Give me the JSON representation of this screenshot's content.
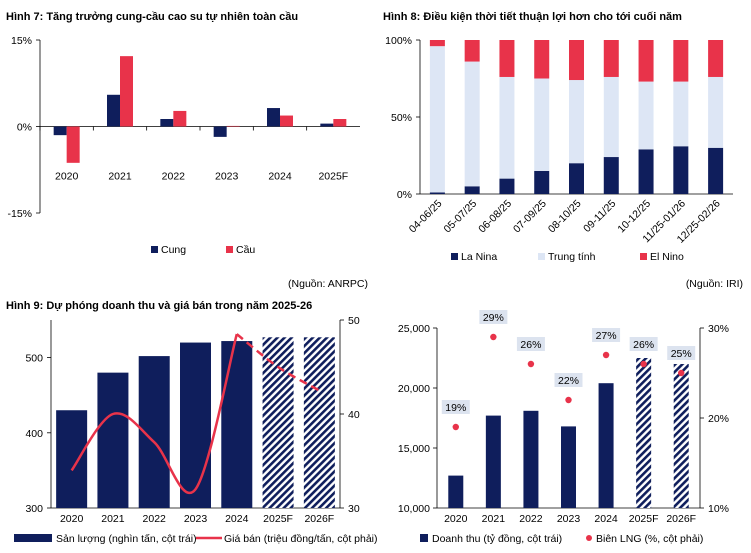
{
  "colors": {
    "navy": "#0f1e5c",
    "red": "#e8334a",
    "lightblue": "#dde6f5",
    "marginbox": "#dce3ef"
  },
  "chart_data": [
    {
      "id": "fig7",
      "type": "bar",
      "title": "Hình 7: Tăng trưởng cung-cầu cao su tự nhiên toàn cầu",
      "categories": [
        "2020",
        "2021",
        "2022",
        "2023",
        "2024",
        "2025F"
      ],
      "series": [
        {
          "name": "Cung",
          "values": [
            -1.5,
            5.5,
            1.3,
            -1.8,
            3.2,
            0.5
          ]
        },
        {
          "name": "Cầu",
          "values": [
            -6.3,
            12.2,
            2.7,
            0.1,
            1.9,
            1.3
          ]
        }
      ],
      "yticks": [
        "15%",
        "0%",
        "-15%"
      ],
      "ylim": [
        -15,
        15
      ],
      "source": "(Nguồn: ANRPC)"
    },
    {
      "id": "fig8",
      "type": "bar",
      "title": "Hình 8: Điều kiện thời tiết thuận lợi hơn cho tới cuối năm",
      "categories": [
        "04-06/25",
        "05-07/25",
        "06-08/25",
        "07-09/25",
        "08-10/25",
        "09-11/25",
        "10-12/25",
        "11/25-01/26",
        "12/25-02/26"
      ],
      "series": [
        {
          "name": "La Nina",
          "values": [
            1,
            5,
            10,
            15,
            20,
            24,
            29,
            31,
            30
          ]
        },
        {
          "name": "Trung tính",
          "values": [
            95,
            81,
            66,
            60,
            54,
            52,
            44,
            42,
            46
          ]
        },
        {
          "name": "El Nino",
          "values": [
            4,
            14,
            24,
            25,
            26,
            24,
            27,
            27,
            24
          ]
        }
      ],
      "yticks": [
        "100%",
        "50%",
        "0%"
      ],
      "ylim": [
        0,
        100
      ],
      "source": "(Nguồn: IRI)"
    },
    {
      "id": "fig9",
      "type": "bar",
      "title": "Hình 9: Dự phóng doanh thu và giá bán trong năm 2025-26",
      "categories": [
        "2020",
        "2021",
        "2022",
        "2023",
        "2024",
        "2025F",
        "2026F"
      ],
      "series": [
        {
          "name": "Sản lượng (nghìn tấn, cột trái)",
          "values": [
            430,
            480,
            502,
            520,
            522,
            527,
            527
          ]
        },
        {
          "name": "Giá bán (triệu đồng/tấn, cột phải)",
          "values": [
            34,
            40,
            37,
            32,
            48.5,
            45,
            42.5
          ]
        }
      ],
      "ylim": [
        300,
        550
      ],
      "y2lim": [
        30,
        50
      ],
      "yticks": [
        "500",
        "400",
        "300"
      ],
      "y2ticks": [
        "50",
        "40",
        "30"
      ]
    },
    {
      "id": "fig10",
      "type": "bar",
      "categories": [
        "2020",
        "2021",
        "2022",
        "2023",
        "2024",
        "2025F",
        "2026F"
      ],
      "series": [
        {
          "name": "Doanh thu (tỷ đồng, cột trái)",
          "values": [
            12700,
            17700,
            18100,
            16800,
            20400,
            22500,
            22000
          ]
        },
        {
          "name": "Biên LNG (%, cột phải)",
          "values": [
            19,
            29,
            26,
            22,
            27,
            26,
            25
          ]
        }
      ],
      "margin_labels": [
        "19%",
        "29%",
        "26%",
        "22%",
        "27%",
        "26%",
        "25%"
      ],
      "ylim": [
        10000,
        25000
      ],
      "y2lim": [
        10,
        30
      ],
      "yticks": [
        "25,000",
        "20,000",
        "15,000",
        "10,000"
      ],
      "y2ticks": [
        "30%",
        "20%",
        "10%"
      ]
    }
  ]
}
